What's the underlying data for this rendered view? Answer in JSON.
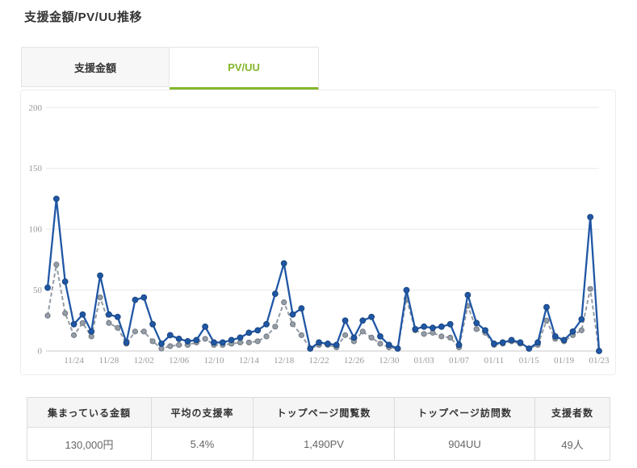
{
  "page": {
    "title": "支援金額/PV/UU推移"
  },
  "tabs": [
    {
      "label": "支援金額",
      "active": false
    },
    {
      "label": "PV/UU",
      "active": true
    }
  ],
  "colors": {
    "accent_green": "#84b62c",
    "pv_blue": "#2057a5",
    "uu_gray": "#949ca5",
    "gridline": "#e8e8e8",
    "axis_baseline": "#c8c8c8",
    "axis_label": "#999999"
  },
  "chart_data": {
    "type": "line",
    "title": "",
    "xlabel": "",
    "ylabel": "",
    "ylim": [
      0,
      200
    ],
    "yticks": [
      0,
      50,
      100,
      150,
      200
    ],
    "grid": "horizontal",
    "legend": "none",
    "x": [
      "11/21",
      "11/22",
      "11/23",
      "11/24",
      "11/25",
      "11/26",
      "11/27",
      "11/28",
      "11/29",
      "11/30",
      "12/01",
      "12/02",
      "12/03",
      "12/04",
      "12/05",
      "12/06",
      "12/07",
      "12/08",
      "12/09",
      "12/10",
      "12/11",
      "12/12",
      "12/13",
      "12/14",
      "12/15",
      "12/16",
      "12/17",
      "12/18",
      "12/19",
      "12/20",
      "12/21",
      "12/22",
      "12/23",
      "12/24",
      "12/25",
      "12/26",
      "12/27",
      "12/28",
      "12/29",
      "12/30",
      "12/31",
      "01/01",
      "01/02",
      "01/03",
      "01/04",
      "01/05",
      "01/06",
      "01/07",
      "01/08",
      "01/09",
      "01/10",
      "01/11",
      "01/12",
      "01/13",
      "01/14",
      "01/15",
      "01/16",
      "01/17",
      "01/18",
      "01/19",
      "01/20",
      "01/21",
      "01/22",
      "01/23"
    ],
    "tick_labels": [
      "11/24",
      "11/28",
      "12/02",
      "12/06",
      "12/10",
      "12/14",
      "12/18",
      "12/22",
      "12/26",
      "12/30",
      "01/03",
      "01/07",
      "01/11",
      "01/15",
      "01/19",
      "01/23"
    ],
    "series": [
      {
        "name": "PV",
        "color": "#2057a5",
        "point_border": "#16447e",
        "dashed": false,
        "values": [
          52,
          125,
          57,
          22,
          30,
          16,
          62,
          30,
          28,
          7,
          42,
          44,
          22,
          6,
          13,
          10,
          8,
          9,
          20,
          7,
          7,
          9,
          11,
          15,
          17,
          22,
          47,
          72,
          30,
          35,
          2,
          7,
          6,
          5,
          25,
          11,
          25,
          28,
          12,
          5,
          2,
          50,
          18,
          20,
          19,
          20,
          22,
          5,
          46,
          23,
          17,
          6,
          7,
          9,
          7,
          2,
          7,
          36,
          12,
          9,
          16,
          26,
          110,
          0
        ]
      },
      {
        "name": "UU",
        "color": "#949ca5",
        "point_border": "#727a84",
        "dashed": true,
        "values": [
          29,
          71,
          31,
          13,
          23,
          12,
          44,
          23,
          19,
          6,
          16,
          16,
          8,
          2,
          4,
          5,
          5,
          7,
          10,
          5,
          5,
          6,
          7,
          7,
          8,
          12,
          20,
          40,
          22,
          13,
          2,
          5,
          5,
          3,
          13,
          8,
          16,
          11,
          6,
          3,
          2,
          43,
          17,
          14,
          15,
          12,
          11,
          3,
          37,
          18,
          15,
          5,
          6,
          8,
          6,
          2,
          5,
          25,
          10,
          8,
          13,
          17,
          51,
          0
        ]
      }
    ]
  },
  "summary_table": {
    "columns": [
      {
        "header": "集まっている金額",
        "value": "130,000円"
      },
      {
        "header": "平均の支援率",
        "value": "5.4%"
      },
      {
        "header": "トップページ閲覧数",
        "value": "1,490PV"
      },
      {
        "header": "トップページ訪問数",
        "value": "904UU"
      },
      {
        "header": "支援者数",
        "value": "49人"
      }
    ]
  }
}
